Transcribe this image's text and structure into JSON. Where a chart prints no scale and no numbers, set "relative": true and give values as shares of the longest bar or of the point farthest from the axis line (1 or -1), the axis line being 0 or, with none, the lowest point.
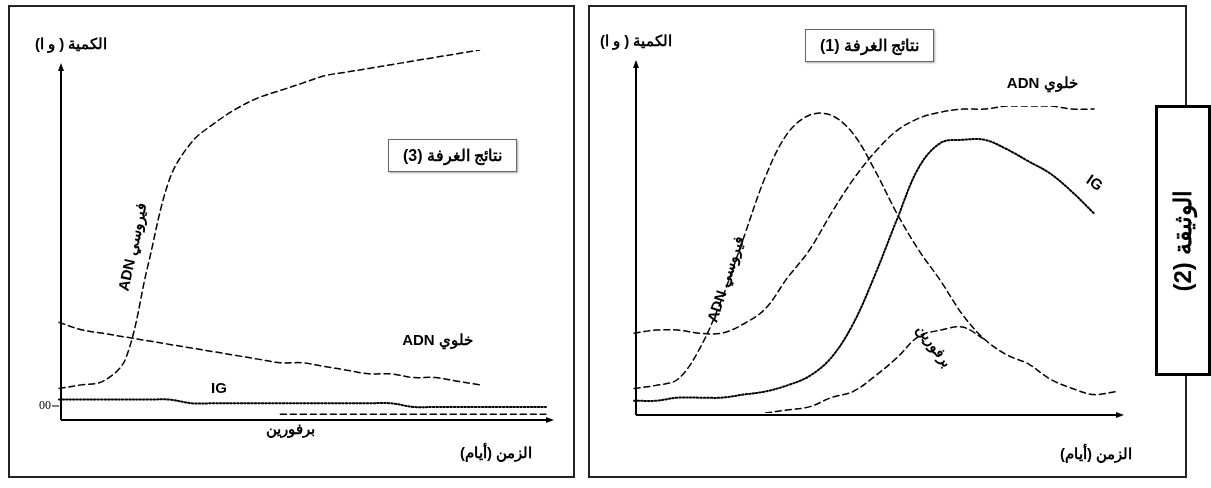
{
  "chart_data": [
    {
      "type": "line",
      "relative": true,
      "title": "نتائج الغرفة (3)",
      "xlabel": "الزمن (أيام)",
      "ylabel": "الكمية ( و ا)",
      "legend": false,
      "grid": false,
      "marker": "none",
      "categories": [
        null,
        null,
        null,
        null,
        null,
        null,
        null,
        null,
        null,
        null,
        null,
        null,
        null,
        null,
        null,
        null,
        null,
        null,
        null,
        null,
        null,
        null,
        null
      ],
      "series": [
        {
          "name": "ADN فيروسي",
          "color": "#000000",
          "line_style": "dashed",
          "values": [
            0.08,
            0.09,
            0.1,
            0.16,
            0.41,
            0.65,
            0.75,
            0.8,
            0.84,
            0.87,
            0.89,
            0.91,
            0.93,
            0.94,
            0.95,
            0.96,
            0.97,
            0.98,
            0.99,
            1.0,
            null,
            null,
            null
          ]
        },
        {
          "name": "ADN خلوي",
          "color": "#000000",
          "line_style": "dashed",
          "values": [
            0.26,
            0.24,
            0.23,
            0.22,
            0.21,
            0.2,
            0.19,
            0.18,
            0.17,
            0.16,
            0.15,
            0.15,
            0.14,
            0.13,
            0.12,
            0.12,
            0.11,
            0.11,
            0.1,
            0.09,
            null,
            null,
            null
          ]
        },
        {
          "name": "IG",
          "color": "#000000",
          "line_style": "dotted",
          "values": [
            0.05,
            0.05,
            0.05,
            0.05,
            0.05,
            0.05,
            0.04,
            0.04,
            0.04,
            0.04,
            0.04,
            0.04,
            0.04,
            0.04,
            0.04,
            0.04,
            0.03,
            0.03,
            0.03,
            0.03,
            0.03,
            0.03,
            0.03
          ]
        },
        {
          "name": "برفورين",
          "color": "#000000",
          "line_style": "dashed",
          "values": [
            null,
            null,
            null,
            null,
            null,
            null,
            null,
            null,
            null,
            null,
            0.01,
            0.01,
            0.01,
            0.01,
            0.01,
            0.01,
            0.01,
            0.01,
            0.01,
            0.01,
            0.01,
            0.01,
            0.01
          ]
        }
      ],
      "annotations": [
        "00"
      ]
    },
    {
      "type": "line",
      "relative": true,
      "title": "نتائج الغرفة (1)",
      "xlabel": "الزمن (أيام)",
      "ylabel": "الكمية ( و ا)",
      "legend": false,
      "grid": false,
      "marker": "none",
      "categories": [
        null,
        null,
        null,
        null,
        null,
        null,
        null,
        null,
        null,
        null,
        null,
        null,
        null,
        null,
        null,
        null,
        null,
        null,
        null,
        null,
        null,
        null,
        null
      ],
      "series": [
        {
          "name": "ADN فيروسي",
          "color": "#000000",
          "line_style": "dashed",
          "values": [
            0.08,
            0.09,
            0.11,
            0.21,
            0.37,
            0.57,
            0.77,
            0.91,
            0.97,
            0.97,
            0.91,
            0.79,
            0.65,
            0.53,
            0.43,
            0.32,
            0.24,
            0.19,
            0.16,
            0.11,
            0.08,
            0.06,
            0.07
          ]
        },
        {
          "name": "ADN خلوي",
          "color": "#000000",
          "line_style": "dashed",
          "values": [
            0.26,
            0.27,
            0.27,
            0.26,
            0.26,
            0.29,
            0.34,
            0.44,
            0.53,
            0.65,
            0.76,
            0.85,
            0.92,
            0.96,
            0.98,
            0.99,
            0.99,
            1.0,
            1.0,
            1.0,
            0.99,
            0.99,
            null
          ]
        },
        {
          "name": "IG",
          "color": "#000000",
          "line_style": "dotted",
          "values": [
            0.04,
            0.04,
            0.05,
            0.05,
            0.05,
            0.06,
            0.07,
            0.09,
            0.12,
            0.18,
            0.29,
            0.45,
            0.63,
            0.8,
            0.88,
            0.89,
            0.89,
            0.86,
            0.82,
            0.78,
            0.72,
            0.65,
            null
          ]
        },
        {
          "name": "برفورين",
          "color": "#000000",
          "line_style": "dashed",
          "values": [
            null,
            null,
            null,
            null,
            null,
            null,
            0.0,
            0.01,
            0.02,
            0.05,
            0.07,
            0.12,
            0.18,
            0.25,
            0.27,
            0.28,
            0.24,
            null,
            null,
            null,
            null,
            null,
            null
          ]
        }
      ],
      "annotations": [
        "الوثيقة (2)"
      ]
    }
  ]
}
